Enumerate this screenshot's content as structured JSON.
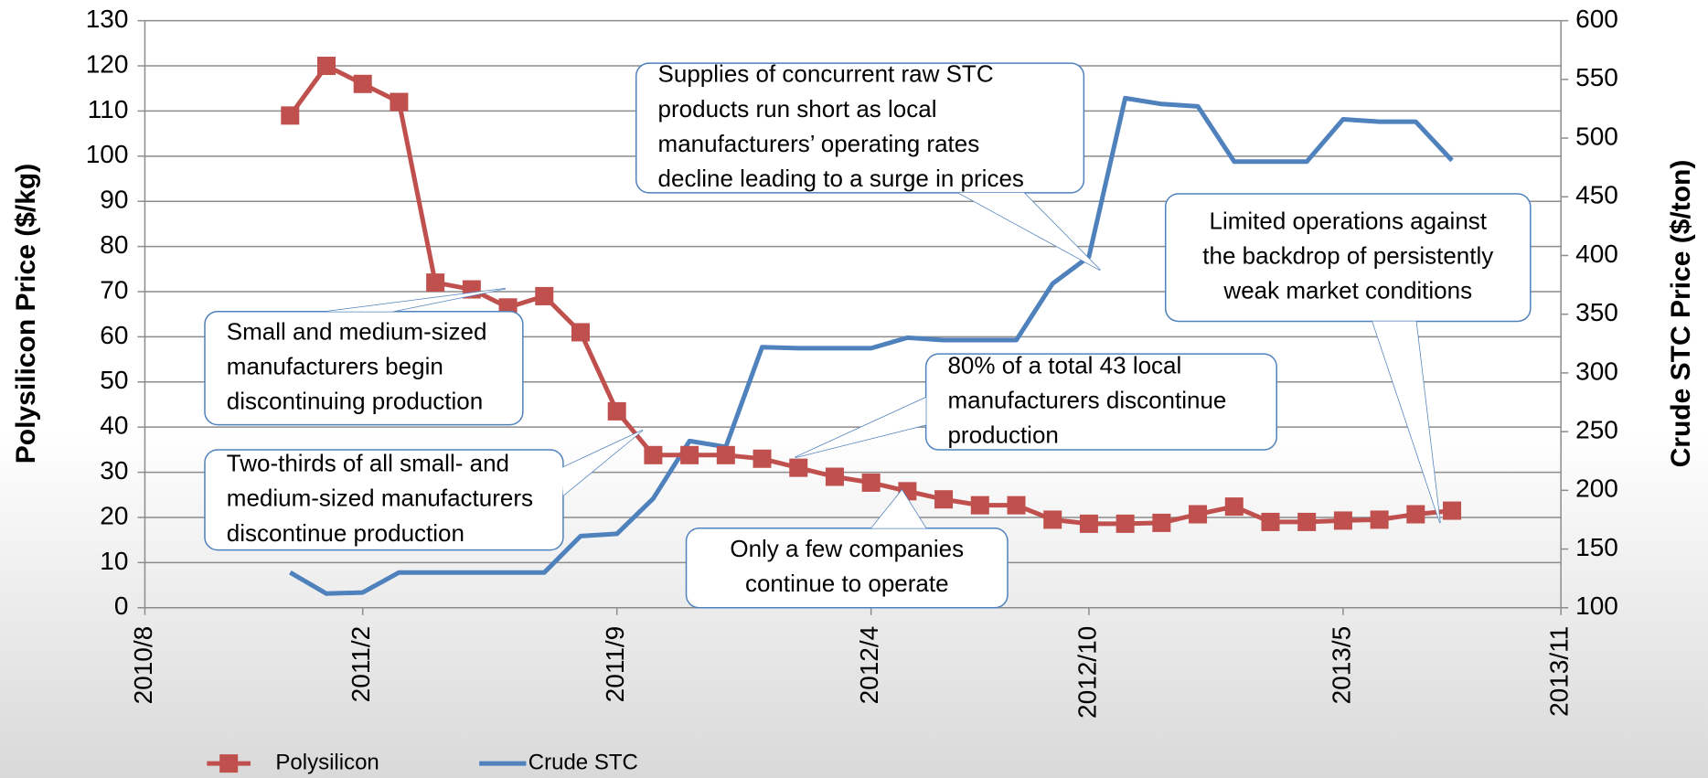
{
  "chart_data": {
    "type": "line",
    "x": [
      "2010/12",
      "2011/1",
      "2011/2",
      "2011/3",
      "2011/4",
      "2011/5",
      "2011/6",
      "2011/7",
      "2011/8",
      "2011/9",
      "2011/10",
      "2011/11",
      "2011/12",
      "2012/1",
      "2012/2",
      "2012/3",
      "2012/4",
      "2012/5",
      "2012/6",
      "2012/7",
      "2012/8",
      "2012/9",
      "2012/10",
      "2012/11",
      "2012/12",
      "2013/1",
      "2013/2",
      "2013/3",
      "2013/4",
      "2013/5",
      "2013/6",
      "2013/7",
      "2013/8"
    ],
    "series": [
      {
        "name": "Polysilicon",
        "color": "#c0504d",
        "marker": "square",
        "values": [
          109,
          120,
          116,
          112,
          72,
          70.5,
          66.5,
          69,
          61,
          43.5,
          33.8,
          33.8,
          33.8,
          33,
          31,
          29,
          27.7,
          25.8,
          24,
          22.7,
          22.7,
          19.5,
          18.6,
          18.6,
          18.8,
          20.7,
          22.4,
          19,
          19,
          19.3,
          19.5,
          20.7,
          21.5
        ]
      },
      {
        "name": "Crude STC",
        "color": "#4f81bd",
        "axis": "y2",
        "values": [
          130,
          112,
          113,
          130,
          130,
          130,
          130,
          130,
          161,
          163,
          193,
          242,
          237,
          322,
          321,
          321,
          321,
          330,
          328,
          328,
          328,
          376,
          399,
          534,
          529,
          527,
          480,
          480,
          480,
          516,
          514,
          514,
          481
        ]
      }
    ],
    "ylabel": "Polysilicon Price  ($/kg)",
    "y2label": "Crude STC Price ($/ton)",
    "ylim": [
      0,
      130
    ],
    "yticks": [
      0,
      10,
      20,
      30,
      40,
      50,
      60,
      70,
      80,
      90,
      100,
      110,
      120,
      130
    ],
    "y2lim": [
      100,
      600
    ],
    "y2ticks": [
      100,
      150,
      200,
      250,
      300,
      350,
      400,
      450,
      500,
      550,
      600
    ],
    "xlim": [
      "2010/8",
      "2013/11"
    ],
    "xticks": [
      "2010/8",
      "2011/2",
      "2011/9",
      "2012/4",
      "2012/10",
      "2013/5",
      "2013/11"
    ],
    "grid": true,
    "legend": "bottom",
    "annotations": [
      {
        "lines": [
          "Small and medium-sized",
          "manufacturers begin",
          "discontinuing production"
        ]
      },
      {
        "lines": [
          "Two-thirds of all small- and",
          "medium-sized manufacturers",
          "discontinue production"
        ]
      },
      {
        "lines": [
          "Supplies of concurrent raw STC",
          "products run short as local",
          "manufacturers’ operating rates",
          "decline leading to a surge in prices"
        ]
      },
      {
        "lines": [
          "80% of a total 43 local",
          "manufacturers discontinue",
          "production"
        ]
      },
      {
        "lines": [
          "Only a few companies",
          "continue to operate"
        ]
      },
      {
        "lines": [
          "Limited operations against",
          "the backdrop of persistently",
          "weak market conditions"
        ]
      }
    ]
  }
}
